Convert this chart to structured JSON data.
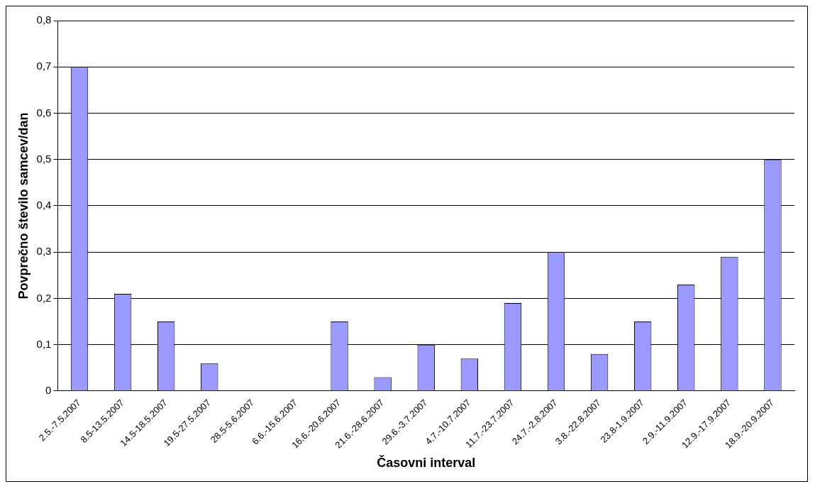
{
  "chart_data": {
    "type": "bar",
    "xlabel": "Časovni interval",
    "ylabel": "Povprečno število samcev/dan",
    "categories": [
      "2.5.-7.5.2007",
      "8.5-13.5.2007",
      "14.5-18.5.2007",
      "19.5-27.5.2007",
      "28.5-5.6.2007",
      "6.6.-15.6.2007",
      "16.6.-20.6.2007",
      "21.6.-28.6.2007",
      "29.6.-3.7.2007",
      "4.7.-10.7.2007",
      "11.7.-23.7.2007",
      "24.7.-2.8.2007",
      "3.8.-22.8.2007",
      "23.8-1.9.2007",
      "2.9.-11.9.2007",
      "12.9.-17.9.2007",
      "18.9.-20.9.2007"
    ],
    "values": [
      0.7,
      0.21,
      0.15,
      0.06,
      0,
      0,
      0.15,
      0.03,
      0.1,
      0.07,
      0.19,
      0.3,
      0.08,
      0.15,
      0.23,
      0.29,
      0.5
    ],
    "color": "#9999ff",
    "ylim": [
      0,
      0.8
    ],
    "yticks": [
      0,
      {
        "value": 0.1,
        "label": "0,1"
      },
      {
        "value": 0.2,
        "label": "0,2"
      },
      {
        "value": 0.3,
        "label": "0,3"
      },
      {
        "value": 0.4,
        "label": "0,4"
      },
      {
        "value": 0.5,
        "label": "0,5"
      },
      {
        "value": 0.6,
        "label": "0,6"
      },
      {
        "value": 0.7,
        "label": "0,7"
      },
      {
        "value": 0.8,
        "label": "0,8"
      }
    ],
    "grid": "y",
    "legend": false
  }
}
